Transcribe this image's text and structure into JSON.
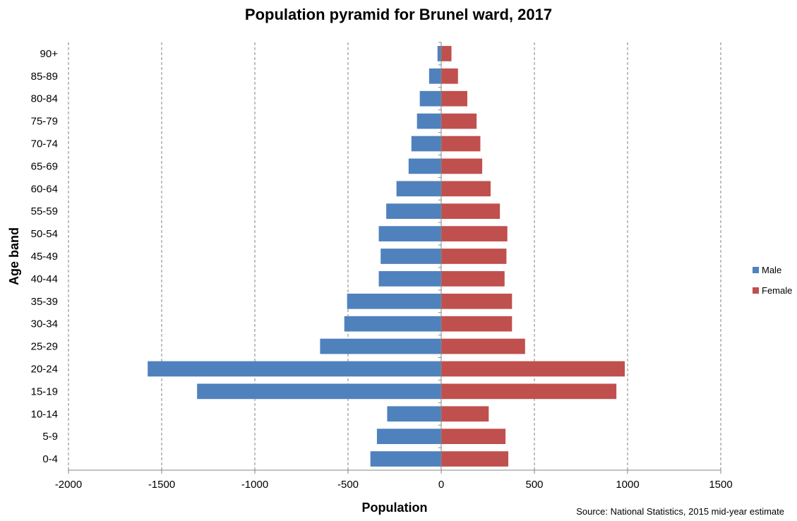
{
  "chart_data": {
    "type": "bar",
    "orientation": "horizontal",
    "layout": "population-pyramid",
    "title": "Population pyramid for Brunel ward, 2017",
    "xlabel": "Population",
    "ylabel": "Age band",
    "source": "Source: National Statistics, 2015 mid-year estimate",
    "xlim": [
      -2000,
      1500
    ],
    "xticks": [
      -2000,
      -1500,
      -1000,
      -500,
      0,
      500,
      1000,
      1500
    ],
    "grid": "vertical-dashed",
    "legend_position": "right",
    "categories": [
      "0-4",
      "5-9",
      "10-14",
      "15-19",
      "20-24",
      "25-29",
      "30-34",
      "35-39",
      "40-44",
      "45-49",
      "50-54",
      "55-59",
      "60-64",
      "65-69",
      "70-74",
      "75-79",
      "80-84",
      "85-89",
      "90+"
    ],
    "series": [
      {
        "name": "Male",
        "color": "#4F81BD",
        "values": [
          -380,
          -345,
          -290,
          -1310,
          -1575,
          -650,
          -520,
          -505,
          -335,
          -325,
          -335,
          -295,
          -240,
          -175,
          -160,
          -130,
          -115,
          -65,
          -20
        ]
      },
      {
        "name": "Female",
        "color": "#C0504D",
        "values": [
          360,
          345,
          255,
          940,
          985,
          450,
          380,
          380,
          340,
          350,
          355,
          315,
          265,
          220,
          210,
          190,
          140,
          90,
          55
        ]
      }
    ]
  }
}
